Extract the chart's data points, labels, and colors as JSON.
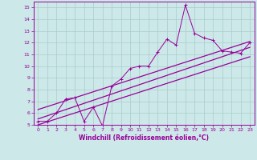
{
  "xlabel": "Windchill (Refroidissement éolien,°C)",
  "background_color": "#cce8e8",
  "grid_color": "#aacccc",
  "line_color": "#990099",
  "xlim": [
    -0.5,
    23.5
  ],
  "ylim": [
    5,
    15.5
  ],
  "xticks": [
    0,
    1,
    2,
    3,
    4,
    5,
    6,
    7,
    8,
    9,
    10,
    11,
    12,
    13,
    14,
    15,
    16,
    17,
    18,
    19,
    20,
    21,
    22,
    23
  ],
  "yticks": [
    5,
    6,
    7,
    8,
    9,
    10,
    11,
    12,
    13,
    14,
    15
  ],
  "scatter_x": [
    0,
    1,
    2,
    3,
    4,
    5,
    6,
    7,
    8,
    9,
    10,
    11,
    12,
    13,
    14,
    15,
    16,
    17,
    18,
    19,
    20,
    21,
    22,
    23
  ],
  "scatter_y": [
    5.3,
    5.3,
    6.0,
    7.2,
    7.3,
    5.3,
    6.5,
    4.9,
    8.3,
    8.9,
    9.8,
    10.0,
    10.0,
    11.2,
    12.3,
    11.8,
    15.2,
    12.8,
    12.4,
    12.2,
    11.3,
    11.2,
    11.1,
    12.0
  ],
  "regression_line": [
    [
      0,
      5.5
    ],
    [
      23,
      11.6
    ]
  ],
  "upper_line": [
    [
      0,
      6.3
    ],
    [
      23,
      12.1
    ]
  ],
  "lower_line": [
    [
      0,
      5.0
    ],
    [
      23,
      10.8
    ]
  ]
}
